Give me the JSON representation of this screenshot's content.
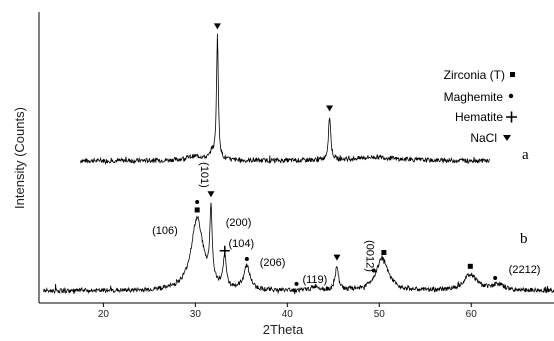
{
  "chart_data": {
    "type": "line",
    "xlabel": "2Theta",
    "ylabel": "Intensity (Counts)",
    "xlim": [
      13,
      69
    ],
    "xticks": [
      20,
      30,
      40,
      50,
      60
    ],
    "grid": false,
    "legend_position": "top-right",
    "legend": [
      {
        "label": "Zirconia (T)",
        "marker": "square"
      },
      {
        "label": "Maghemite",
        "marker": "circle"
      },
      {
        "label": "Hematite",
        "marker": "cross"
      },
      {
        "label": "NaCl",
        "marker": "triangle"
      }
    ],
    "series": [
      {
        "name": "a",
        "baseline": 5,
        "x_range": [
          17.5,
          62
        ],
        "peaks": [
          {
            "x": 32.4,
            "height": 86,
            "width": 0.12
          },
          {
            "x": 44.6,
            "height": 30,
            "width": 0.15
          },
          {
            "x": 31.8,
            "height": 5,
            "width": 0.2
          },
          {
            "x": 30.0,
            "height": 3,
            "width": 1.2
          },
          {
            "x": 49.5,
            "height": 2.5,
            "width": 2.5
          }
        ]
      },
      {
        "name": "b",
        "baseline": 4,
        "x_range": [
          13.5,
          69
        ],
        "peaks": [
          {
            "x": 30.2,
            "height": 36,
            "width": 0.8
          },
          {
            "x": 31.7,
            "height": 36,
            "width": 0.15
          },
          {
            "x": 33.2,
            "height": 15,
            "width": 0.2
          },
          {
            "x": 35.6,
            "height": 12,
            "width": 0.4
          },
          {
            "x": 45.4,
            "height": 12,
            "width": 0.2
          },
          {
            "x": 50.3,
            "height": 16,
            "width": 0.8
          },
          {
            "x": 59.9,
            "height": 8,
            "width": 0.9
          },
          {
            "x": 62.9,
            "height": 3,
            "width": 0.8
          },
          {
            "x": 43.1,
            "height": 2,
            "width": 0.5
          }
        ]
      }
    ],
    "annotations": [
      {
        "text": "(101)",
        "x": 30.6,
        "series": "b",
        "rotate": 90
      },
      {
        "text": "(106)",
        "x": 26.7,
        "series": "b"
      },
      {
        "text": "(200)",
        "x": 34.7,
        "series": "b"
      },
      {
        "text": "(104)",
        "x": 35.0,
        "series": "b"
      },
      {
        "text": "(206)",
        "x": 38.4,
        "series": "b"
      },
      {
        "text": "(119)",
        "x": 43.0,
        "series": "b"
      },
      {
        "text": "(0012)",
        "x": 48.6,
        "series": "b",
        "rotate": 90
      },
      {
        "text": "(2212)",
        "x": 65.8,
        "series": "b"
      }
    ],
    "markers": [
      {
        "series": "a",
        "x": 32.4,
        "type": "triangle"
      },
      {
        "series": "a",
        "x": 44.6,
        "type": "triangle"
      },
      {
        "series": "b",
        "x": 30.2,
        "type": "square"
      },
      {
        "series": "b",
        "x": 30.2,
        "type": "circle"
      },
      {
        "series": "b",
        "x": 31.7,
        "type": "triangle"
      },
      {
        "series": "b",
        "x": 33.2,
        "type": "cross"
      },
      {
        "series": "b",
        "x": 35.6,
        "type": "circle"
      },
      {
        "series": "b",
        "x": 41.0,
        "type": "circle"
      },
      {
        "series": "b",
        "x": 45.4,
        "type": "triangle"
      },
      {
        "series": "b",
        "x": 49.4,
        "type": "circle"
      },
      {
        "series": "b",
        "x": 50.5,
        "type": "square"
      },
      {
        "series": "b",
        "x": 59.9,
        "type": "square"
      },
      {
        "series": "b",
        "x": 62.6,
        "type": "circle"
      }
    ]
  }
}
